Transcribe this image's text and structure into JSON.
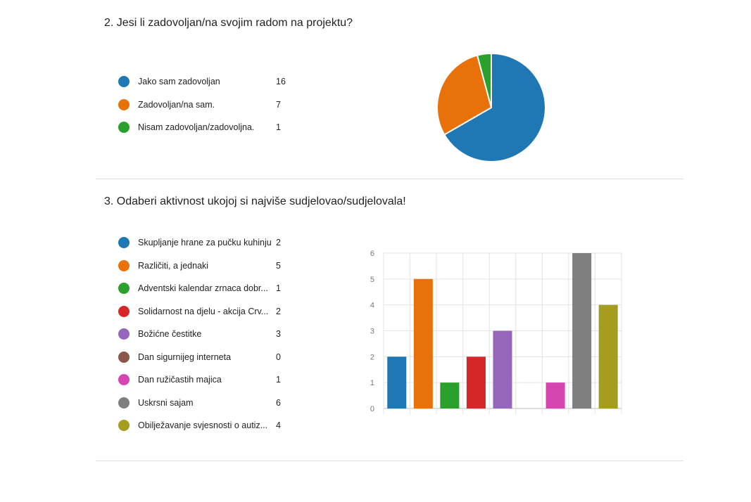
{
  "questions": [
    {
      "title": "2.  Jesi li zadovoljan/na svojim radom na projektu?",
      "legend": [
        {
          "label": "Jako sam zadovoljan",
          "count": "16",
          "color": "#1f77b4"
        },
        {
          "label": "Zadovoljan/na sam.",
          "count": "7",
          "color": "#e8710a"
        },
        {
          "label": "Nisam zadovoljan/zadovoljna.",
          "count": "1",
          "color": "#2ca02c"
        }
      ]
    },
    {
      "title": "3.  Odaberi aktivnost ukojoj si najviše sudjelovao/sudjelovala!",
      "legend": [
        {
          "label": "Skupljanje hrane za pučku kuhinju",
          "count": "2",
          "color": "#1f77b4"
        },
        {
          "label": "Različiti, a jednaki",
          "count": "5",
          "color": "#e8710a"
        },
        {
          "label": "Adventski kalendar zrnaca dobr...",
          "count": "1",
          "color": "#2ca02c"
        },
        {
          "label": "Solidarnost na djelu - akcija Crv...",
          "count": "2",
          "color": "#d62728"
        },
        {
          "label": "Božićne čestitke",
          "count": "3",
          "color": "#9467bd"
        },
        {
          "label": "Dan sigurnijeg interneta",
          "count": "0",
          "color": "#8c564b"
        },
        {
          "label": "Dan ružičastih majica",
          "count": "1",
          "color": "#d646b0"
        },
        {
          "label": "Uskrsni sajam",
          "count": "6",
          "color": "#7f7f7f"
        },
        {
          "label": "Obilježavanje svjesnosti o autiz...",
          "count": "4",
          "color": "#a59d1e"
        }
      ]
    }
  ],
  "chart_data": [
    {
      "type": "pie",
      "categories": [
        "Jako sam zadovoljan",
        "Zadovoljan/na sam.",
        "Nisam zadovoljan/zadovoljna."
      ],
      "values": [
        16,
        7,
        1
      ],
      "colors": [
        "#1f77b4",
        "#e8710a",
        "#2ca02c"
      ]
    },
    {
      "type": "bar",
      "categories": [
        "Skupljanje hrane za pučku kuhinju",
        "Različiti, a jednaki",
        "Adventski kalendar zrnaca dobr...",
        "Solidarnost na djelu - akcija Crv...",
        "Božićne čestitke",
        "Dan sigurnijeg interneta",
        "Dan ružičastih majica",
        "Uskrsni sajam",
        "Obilježavanje svjesnosti o autiz..."
      ],
      "values": [
        2,
        5,
        1,
        2,
        3,
        0,
        1,
        6,
        4
      ],
      "colors": [
        "#1f77b4",
        "#e8710a",
        "#2ca02c",
        "#d62728",
        "#9467bd",
        "#8c564b",
        "#d646b0",
        "#7f7f7f",
        "#a59d1e"
      ],
      "ylim": [
        0,
        6
      ],
      "yticks": [
        "0",
        "1",
        "2",
        "3",
        "4",
        "5",
        "6"
      ],
      "grid": true
    }
  ]
}
